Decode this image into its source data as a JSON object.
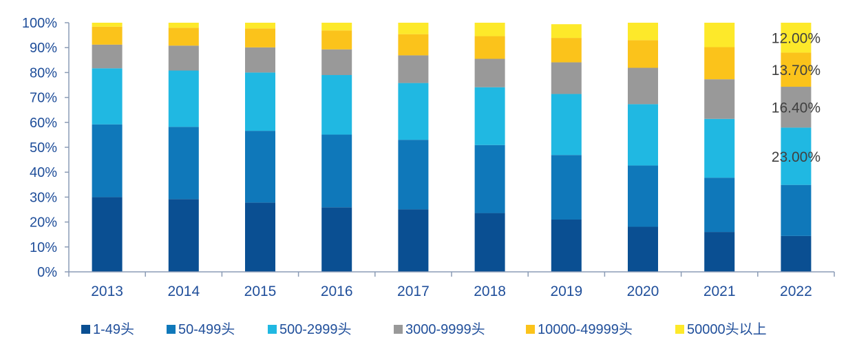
{
  "chart_data": {
    "type": "bar",
    "stacked": true,
    "title": "",
    "xlabel": "",
    "ylabel": "",
    "ylim": [
      0,
      100
    ],
    "y_ticks": [
      "0%",
      "10%",
      "20%",
      "30%",
      "40%",
      "50%",
      "60%",
      "70%",
      "80%",
      "90%",
      "100%"
    ],
    "grid": false,
    "legend_position": "bottom",
    "categories": [
      "2013",
      "2014",
      "2015",
      "2016",
      "2017",
      "2018",
      "2019",
      "2020",
      "2021",
      "2022"
    ],
    "series": [
      {
        "name": "1-49头",
        "color": "#0a4f92",
        "values": [
          30.0,
          29.2,
          27.8,
          25.9,
          25.1,
          23.6,
          21.0,
          18.1,
          16.0,
          14.4
        ]
      },
      {
        "name": "50-499头",
        "color": "#0f78ba",
        "values": [
          29.2,
          29.0,
          28.8,
          29.2,
          27.9,
          27.3,
          25.9,
          24.6,
          21.8,
          20.5
        ]
      },
      {
        "name": "500-2999头",
        "color": "#20b8e2",
        "values": [
          22.5,
          22.6,
          23.4,
          23.9,
          22.8,
          23.2,
          24.5,
          24.6,
          23.6,
          23.0
        ]
      },
      {
        "name": "3000-9999头",
        "color": "#999999",
        "values": [
          9.5,
          10.0,
          10.1,
          10.3,
          11.1,
          11.4,
          12.7,
          14.6,
          15.9,
          16.4
        ]
      },
      {
        "name": "10000-49999头",
        "color": "#fbc31b",
        "values": [
          7.2,
          7.2,
          7.6,
          7.6,
          8.5,
          9.1,
          9.8,
          11.1,
          12.9,
          13.7
        ]
      },
      {
        "name": "50000头以上",
        "color": "#fde92a",
        "values": [
          1.6,
          2.0,
          2.3,
          3.1,
          4.6,
          5.4,
          5.5,
          7.0,
          9.8,
          12.0
        ]
      }
    ],
    "annotations": [
      {
        "category": "2022",
        "series": "50000头以上",
        "text": "12.00%"
      },
      {
        "category": "2022",
        "series": "10000-49999头",
        "text": "13.70%"
      },
      {
        "category": "2022",
        "series": "3000-9999头",
        "text": "16.40%"
      },
      {
        "category": "2022",
        "series": "500-2999头",
        "text": "23.00%"
      }
    ]
  }
}
